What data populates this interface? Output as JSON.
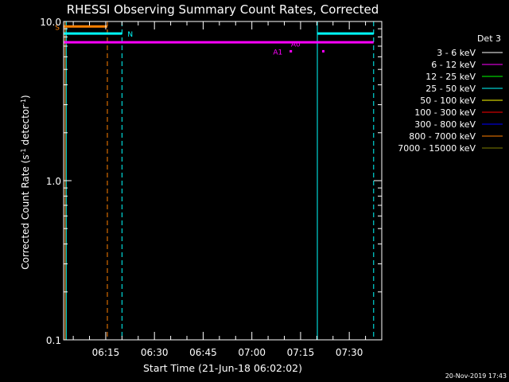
{
  "chart_data": {
    "type": "line",
    "title": "RHESSI Observing Summary Count Rates, Corrected",
    "xlabel": "Start Time (21-Jun-18 06:02:02)",
    "ylabel_parts": [
      "Corrected Count Rate (s",
      "-1",
      " detector",
      "-1",
      ")"
    ],
    "y_scale": "log",
    "ylim": [
      0.1,
      10.0
    ],
    "xlim": [
      "06:02:02",
      "07:40:00"
    ],
    "y_ticks": [
      {
        "value": 0.1,
        "label": "0.1"
      },
      {
        "value": 1.0,
        "label": "1.0"
      },
      {
        "value": 10.0,
        "label": "10.0"
      }
    ],
    "x_ticks": [
      {
        "time": "06:15",
        "label": "06:15"
      },
      {
        "time": "06:30",
        "label": "06:30"
      },
      {
        "time": "06:45",
        "label": "06:45"
      },
      {
        "time": "07:00",
        "label": "07:00"
      },
      {
        "time": "07:15",
        "label": "07:15"
      },
      {
        "time": "07:30",
        "label": "07:30"
      }
    ],
    "legend": {
      "title": "Det 3",
      "placement": "right",
      "entries": [
        {
          "label": "3 - 6 keV",
          "color": "#ffffff"
        },
        {
          "label": "6 - 12 keV",
          "color": "#ff00ff"
        },
        {
          "label": "12 - 25 keV",
          "color": "#00ff00"
        },
        {
          "label": "25 - 50 keV",
          "color": "#00ffff"
        },
        {
          "label": "50 - 100 keV",
          "color": "#ffff00"
        },
        {
          "label": "100 - 300 keV",
          "color": "#ff0000"
        },
        {
          "label": "300 - 800 keV",
          "color": "#0000ff"
        },
        {
          "label": "800 - 7000 keV",
          "color": "#ff8000"
        },
        {
          "label": "7000 - 15000 keV",
          "color": "#808000"
        }
      ]
    },
    "horizontal_bars": [
      {
        "name": "S",
        "color": "#ff8000",
        "y": 9.3,
        "x_start": "06:02:02",
        "x_end": "06:15:30",
        "label": "S",
        "label_side": "left"
      },
      {
        "name": "N1",
        "color": "#00ffff",
        "y": 8.4,
        "x_start": "06:02:02",
        "x_end": "06:20:00",
        "label": "N",
        "label_side": "right"
      },
      {
        "name": "N2",
        "color": "#00ffff",
        "y": 8.4,
        "x_start": "07:20:10",
        "x_end": "07:37:30",
        "label": "",
        "label_side": "none"
      },
      {
        "name": "A",
        "color": "#ff00ff",
        "y": 7.4,
        "x_start": "06:02:02",
        "x_end": "07:37:30",
        "label": "",
        "label_side": "none"
      }
    ],
    "points": [
      {
        "color": "#ff00ff",
        "time": "07:12:00",
        "y": 6.5
      },
      {
        "color": "#ff00ff",
        "time": "07:22:00",
        "y": 6.5
      }
    ],
    "annotations": [
      {
        "text": "A1",
        "color": "#ff00ff",
        "time": "07:08:00",
        "y": 6.5
      },
      {
        "text": "A0",
        "color": "#ff00ff",
        "time": "07:13:30",
        "y": 7.3
      }
    ],
    "vertical_lines": [
      {
        "time": "06:02:30",
        "color": "#ff8000",
        "style": "solid"
      },
      {
        "time": "06:02:50",
        "color": "#00ffff",
        "style": "solid"
      },
      {
        "time": "06:15:30",
        "color": "#ff8000",
        "style": "dashed"
      },
      {
        "time": "06:20:00",
        "color": "#00ffff",
        "style": "dashed"
      },
      {
        "time": "07:20:10",
        "color": "#00ffff",
        "style": "solid"
      },
      {
        "time": "07:37:30",
        "color": "#00ffff",
        "style": "dashed"
      }
    ],
    "grid": false
  },
  "footer": {
    "timestamp": "20-Nov-2019 17:43"
  }
}
